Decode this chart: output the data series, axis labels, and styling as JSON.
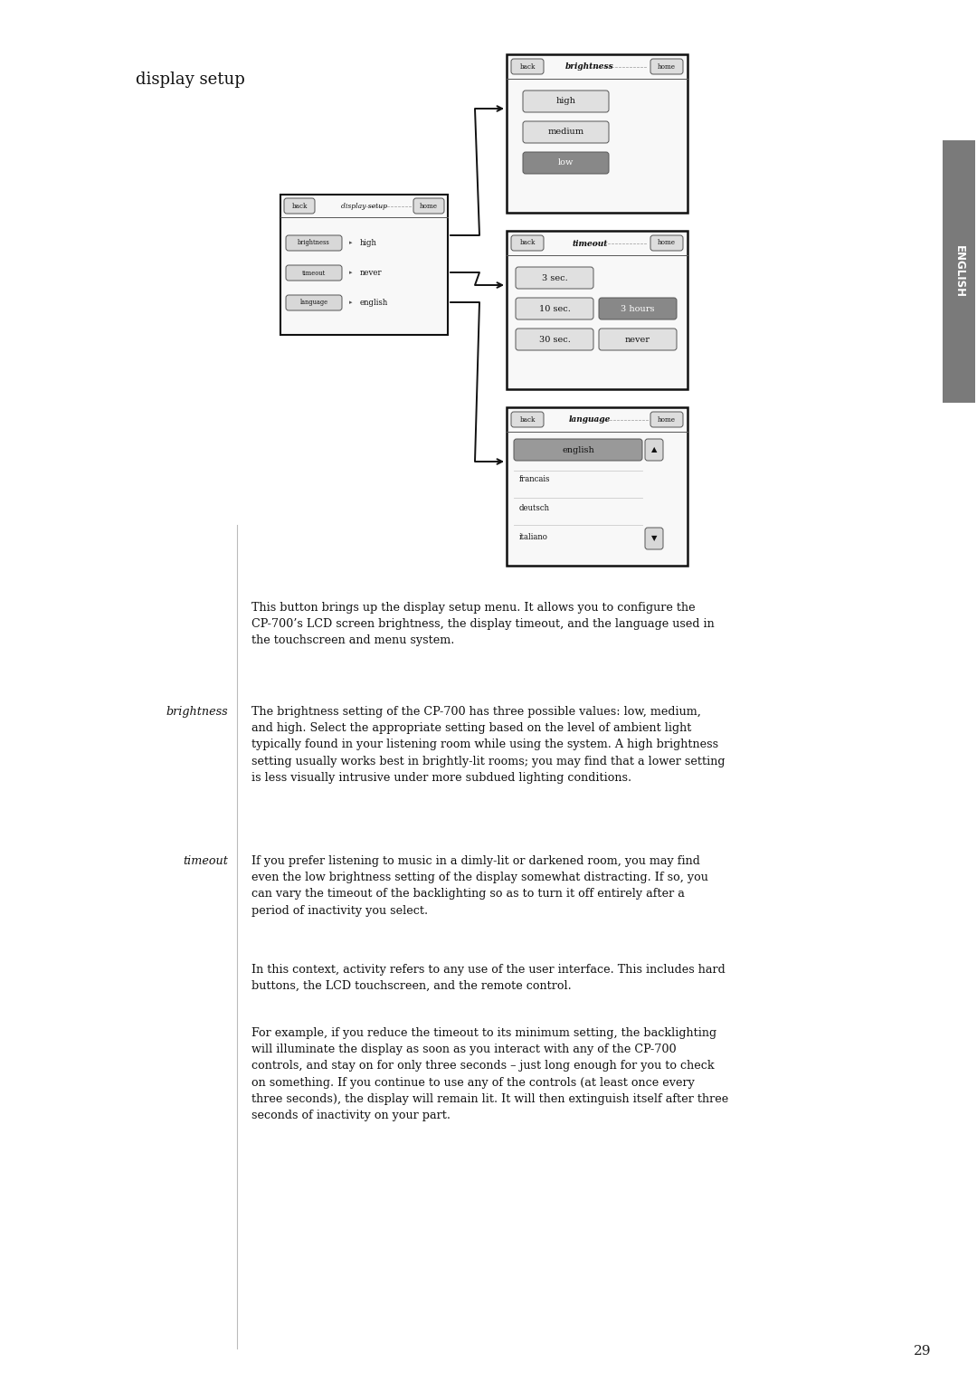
{
  "page_bg": "#ffffff",
  "page_number": "29",
  "title": "display setup",
  "sidebar_color": "#7a7a7a",
  "sidebar_text": "ENGLISH",
  "body_fs": 9.2,
  "label_fs": 9.2,
  "title_fs": 13.0,
  "p1_text": "This button brings up the display setup menu. It allows you to configure the\nCP-700’s LCD screen brightness, the display timeout, and the language used in\nthe touchscreen and menu system.",
  "brightness_label": "brightness",
  "p2_text": "The brightness setting of the CP-700 has three possible values: low, medium,\nand high. Select the appropriate setting based on the level of ambient light\ntypically found in your listening room while using the system. A high brightness\nsetting usually works best in brightly-lit rooms; you may find that a lower setting\nis less visually intrusive under more subdued lighting conditions.",
  "timeout_label": "timeout",
  "p3_text": "If you prefer listening to music in a dimly-lit or darkened room, you may find\neven the low brightness setting of the display somewhat distracting. If so, you\ncan vary the timeout of the backlighting so as to turn it off entirely after a\nperiod of inactivity you select.",
  "p4_text": "In this context, activity refers to any use of the user interface. This includes hard\nbuttons, the LCD touchscreen, and the remote control.",
  "p5_text": "For example, if you reduce the timeout to its minimum setting, the backlighting\nwill illuminate the display as soon as you interact with any of the CP-700\ncontrols, and stay on for only three seconds – just long enough for you to check\non something. If you continue to use any of the controls (at least once every\nthree seconds), the display will remain lit. It will then extinguish itself after three\nseconds of inactivity on your part."
}
